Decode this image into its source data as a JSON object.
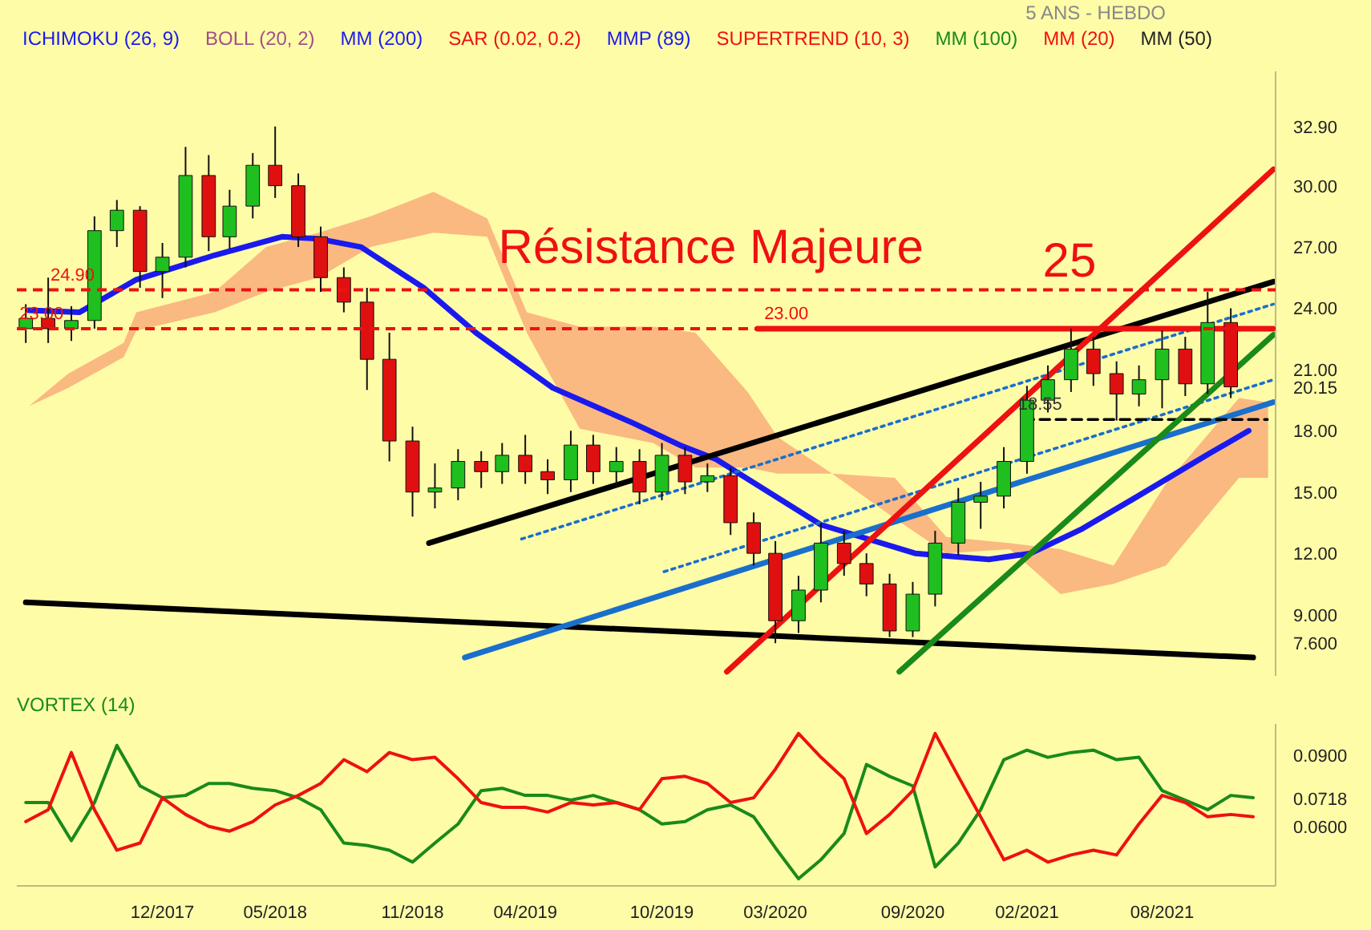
{
  "chart_data": [
    {
      "type": "candlestick",
      "x": [
        "2017-06",
        "2017-07",
        "2017-08",
        "2017-09",
        "2017-10",
        "2017-11",
        "2017-12",
        "2018-01",
        "2018-02",
        "2018-03",
        "2018-04",
        "2018-05",
        "2018-06",
        "2018-07",
        "2018-08",
        "2018-09",
        "2018-10",
        "2018-11",
        "2018-12",
        "2019-01",
        "2019-02",
        "2019-03",
        "2019-04",
        "2019-05",
        "2019-06",
        "2019-07",
        "2019-08",
        "2019-09",
        "2019-10",
        "2019-11",
        "2019-12",
        "2020-01",
        "2020-02",
        "2020-03",
        "2020-04",
        "2020-05",
        "2020-06",
        "2020-07",
        "2020-08",
        "2020-09",
        "2020-10",
        "2020-11",
        "2020-12",
        "2021-01",
        "2021-02",
        "2021-03",
        "2021-04",
        "2021-05",
        "2021-06",
        "2021-07",
        "2021-08",
        "2021-09",
        "2021-10",
        "2021-11"
      ],
      "ohlc": [
        [
          23.0,
          24.2,
          22.3,
          23.5
        ],
        [
          23.5,
          25.5,
          22.3,
          23.0
        ],
        [
          23.0,
          24.1,
          22.4,
          23.4
        ],
        [
          23.4,
          28.5,
          23.0,
          27.8
        ],
        [
          27.8,
          29.3,
          27.0,
          28.8
        ],
        [
          28.8,
          29.0,
          25.0,
          25.8
        ],
        [
          25.8,
          27.2,
          24.5,
          26.5
        ],
        [
          26.5,
          31.9,
          26.0,
          30.5
        ],
        [
          30.5,
          31.5,
          26.8,
          27.5
        ],
        [
          27.5,
          29.8,
          26.9,
          29.0
        ],
        [
          29.0,
          31.6,
          28.4,
          31.0
        ],
        [
          31.0,
          32.9,
          29.4,
          30.0
        ],
        [
          30.0,
          30.6,
          27.0,
          27.5
        ],
        [
          27.5,
          28.0,
          24.8,
          25.5
        ],
        [
          25.5,
          26.0,
          23.8,
          24.3
        ],
        [
          24.3,
          25.0,
          20.0,
          21.5
        ],
        [
          21.5,
          22.8,
          16.5,
          17.5
        ],
        [
          17.5,
          18.2,
          13.8,
          15.0
        ],
        [
          15.0,
          16.4,
          14.2,
          15.2
        ],
        [
          15.2,
          17.1,
          14.6,
          16.5
        ],
        [
          16.5,
          17.0,
          15.2,
          16.0
        ],
        [
          16.0,
          17.4,
          15.4,
          16.8
        ],
        [
          16.8,
          17.8,
          15.4,
          16.0
        ],
        [
          16.0,
          16.6,
          14.9,
          15.6
        ],
        [
          15.6,
          18.0,
          15.0,
          17.3
        ],
        [
          17.3,
          17.8,
          15.4,
          16.0
        ],
        [
          16.0,
          17.2,
          15.3,
          16.5
        ],
        [
          16.5,
          17.1,
          14.4,
          15.0
        ],
        [
          15.0,
          17.4,
          14.6,
          16.8
        ],
        [
          16.8,
          17.2,
          14.9,
          15.5
        ],
        [
          15.5,
          16.4,
          15.0,
          15.8
        ],
        [
          15.8,
          16.2,
          12.9,
          13.5
        ],
        [
          13.5,
          14.0,
          11.4,
          12.0
        ],
        [
          12.0,
          12.6,
          7.6,
          8.7
        ],
        [
          8.7,
          10.9,
          8.1,
          10.2
        ],
        [
          10.2,
          13.5,
          9.6,
          12.5
        ],
        [
          12.5,
          13.1,
          10.9,
          11.5
        ],
        [
          11.5,
          12.0,
          9.9,
          10.5
        ],
        [
          10.5,
          11.0,
          7.9,
          8.2
        ],
        [
          8.2,
          10.6,
          7.9,
          10.0
        ],
        [
          10.0,
          13.1,
          9.4,
          12.5
        ],
        [
          12.5,
          15.2,
          11.9,
          14.5
        ],
        [
          14.5,
          15.5,
          13.2,
          14.8
        ],
        [
          14.8,
          17.2,
          14.2,
          16.5
        ],
        [
          16.5,
          20.2,
          15.9,
          19.5
        ],
        [
          19.5,
          21.2,
          18.9,
          20.5
        ],
        [
          20.5,
          23.0,
          19.9,
          22.0
        ],
        [
          22.0,
          22.6,
          20.2,
          20.8
        ],
        [
          20.8,
          21.4,
          18.5,
          19.8
        ],
        [
          19.8,
          21.2,
          19.2,
          20.5
        ],
        [
          20.5,
          23.0,
          19.1,
          22.0
        ],
        [
          22.0,
          22.6,
          19.7,
          20.3
        ],
        [
          20.3,
          24.8,
          19.8,
          23.3
        ],
        [
          23.3,
          24.0,
          19.6,
          20.15
        ]
      ],
      "colors": [
        "#1fbf1f",
        "#e01010",
        "#1fbf1f",
        "#1fbf1f",
        "#1fbf1f",
        "#e01010",
        "#1fbf1f",
        "#1fbf1f",
        "#e01010",
        "#1fbf1f",
        "#1fbf1f",
        "#e01010",
        "#e01010",
        "#e01010",
        "#e01010",
        "#e01010",
        "#e01010",
        "#e01010",
        "#1fbf1f",
        "#1fbf1f",
        "#e01010",
        "#1fbf1f",
        "#e01010",
        "#e01010",
        "#1fbf1f",
        "#e01010",
        "#1fbf1f",
        "#e01010",
        "#1fbf1f",
        "#e01010",
        "#1fbf1f",
        "#e01010",
        "#e01010",
        "#e01010",
        "#1fbf1f",
        "#1fbf1f",
        "#e01010",
        "#e01010",
        "#e01010",
        "#1fbf1f",
        "#1fbf1f",
        "#1fbf1f",
        "#1fbf1f",
        "#1fbf1f",
        "#1fbf1f",
        "#1fbf1f",
        "#1fbf1f",
        "#e01010",
        "#e01010",
        "#1fbf1f",
        "#1fbf1f",
        "#e01010",
        "#1fbf1f",
        "#e01010"
      ],
      "series": [
        {
          "type": "line",
          "color": "#f9ad7a",
          "values": [
            null,
            null,
            null,
            null,
            null,
            null,
            null,
            null,
            null,
            null,
            null,
            null,
            null,
            null,
            null,
            null,
            null,
            null,
            null,
            null,
            null,
            null,
            null,
            null,
            null
          ],
          "x": [
            "2017-06-05",
            "2017-07-28",
            "2017-10-10",
            "2017-10-27",
            "2018-02-09",
            "2018-04-19",
            "2018-06-28",
            "2018-09-06",
            "2018-11-29",
            "2019-02-09",
            "2019-04-03",
            "2019-06-13",
            "2019-09-19",
            "2019-11-15",
            "2020-01-24",
            "2020-03-04",
            "2020-05-16",
            "2020-08-08",
            "2020-10-16",
            "2021-01-09",
            "2021-03-18",
            "2021-05-28",
            "2021-08-06",
            "2021-11-12",
            "2021-12-21"
          ],
          "upper": [
            19.2,
            20.8,
            22.3,
            23.8,
            24.8,
            27.0,
            27.7,
            28.5,
            29.7,
            28.4,
            23.8,
            23.1,
            23.1,
            22.8,
            19.9,
            17.7,
            15.9,
            15.7,
            12.8,
            12.5,
            12.2,
            11.4,
            15.4,
            19.6,
            19.4
          ],
          "lower": [
            19.2,
            20.1,
            21.6,
            22.9,
            23.8,
            24.8,
            25.5,
            27.0,
            27.7,
            27.5,
            22.8,
            18.1,
            17.4,
            16.2,
            16.2,
            15.9,
            15.9,
            13.7,
            12.0,
            12.2,
            10.0,
            10.5,
            11.4,
            15.7,
            15.7
          ]
        },
        {
          "type": "line",
          "color": "#1a1aee",
          "x": [
            "2017-06-05",
            "2017-08-12",
            "2017-10-27",
            "2018-02-09",
            "2018-05-10",
            "2018-06-28",
            "2018-08-24",
            "2018-11-16",
            "2019-01-25",
            "2019-05-08",
            "2019-08-22",
            "2019-10-25",
            "2019-12-13",
            "2020-05-01",
            "2020-09-04",
            "2020-12-12",
            "2021-02-06",
            "2021-04-16",
            "2021-06-25",
            "2021-10-04",
            "2021-11-25"
          ],
          "values": [
            23.9,
            23.8,
            25.4,
            26.6,
            27.5,
            27.4,
            27.0,
            25.0,
            22.8,
            20.1,
            18.4,
            17.3,
            16.6,
            13.4,
            12.0,
            11.7,
            12.0,
            13.2,
            14.7,
            16.9,
            18.0
          ]
        },
        {
          "type": "line",
          "color": "#000000",
          "x": [
            "2018-11-23",
            "2021-12-28"
          ],
          "values": [
            12.5,
            25.3
          ]
        },
        {
          "type": "line",
          "color": "#000000",
          "x": [
            "2017-06-01",
            "2021-12-01"
          ],
          "values": [
            9.6,
            6.9
          ]
        },
        {
          "type": "line",
          "color": "#1a6fcc",
          "x": [
            "2019-01-10",
            "2021-12-28"
          ],
          "values": [
            6.9,
            19.4
          ]
        },
        {
          "type": "line",
          "color": "#1a6fcc",
          "line_style": "dotted",
          "x": [
            "2019-03-27",
            "2021-12-28"
          ],
          "values": [
            12.7,
            24.2
          ]
        },
        {
          "type": "line",
          "color": "#1a6fcc",
          "line_style": "dotted",
          "x": [
            "2019-10-04",
            "2021-12-28"
          ],
          "values": [
            11.1,
            20.5
          ]
        },
        {
          "type": "line",
          "color": "#000000",
          "line_style": "dashed",
          "x": [
            "2021-01-28",
            "2021-12-20"
          ],
          "values": [
            18.55,
            18.55
          ]
        },
        {
          "type": "line",
          "color": "#ee1111",
          "x": [
            "2020-02-06",
            "2021-12-28"
          ],
          "values": [
            23.0,
            23.0
          ]
        },
        {
          "type": "line",
          "color": "#ee1111",
          "x": [
            "2019-12-27",
            "2021-12-28"
          ],
          "values": [
            6.2,
            30.8
          ]
        },
        {
          "type": "line",
          "color": "#1a8a1a",
          "x": [
            "2020-08-14",
            "2021-12-28"
          ],
          "values": [
            6.2,
            22.7
          ]
        }
      ],
      "ref_lines": [
        {
          "axis": "y",
          "value": 24.9,
          "label": "24.90",
          "color": "#ee1111",
          "line_style": "dashed"
        },
        {
          "axis": "y",
          "value": 23.0,
          "label": "23.00",
          "color": "#ee1111",
          "line_style": "dashed"
        }
      ],
      "annotations": [
        "5 ANS - HEBDO",
        "ICHIMOKU (26, 9)",
        "BOLL (20, 2)",
        "MM (200)",
        "SAR (0.02, 0.2)",
        "MMP (89)",
        "SUPERTREND (10, 3)",
        "MM (100)",
        "MM (20)",
        "MM (50)",
        "25",
        {
          "text": "Résistance Majeure",
          "x": "2019-02-24",
          "y": 25.6
        },
        {
          "text": "23.00",
          "x": "2020-02-15",
          "y": 23.0
        },
        {
          "text": "18.55",
          "x": "2021-01-20",
          "y": 18.55
        }
      ],
      "xlim": [
        "2017-05-20",
        "2021-12-31"
      ],
      "ylim": [
        6.0,
        35.6
      ],
      "yticks": [
        {
          "value": 7.6,
          "label": "7.600"
        },
        {
          "value": 9,
          "label": "9.000"
        },
        {
          "value": 12,
          "label": "12.00"
        },
        {
          "value": 15,
          "label": "15.00"
        },
        {
          "value": 18,
          "label": "18.00"
        },
        {
          "value": 20.15,
          "label": "20.15"
        },
        {
          "value": 21,
          "label": "21.00"
        },
        {
          "value": 24,
          "label": "24.00"
        },
        {
          "value": 27,
          "label": "27.00"
        },
        {
          "value": 30,
          "label": "30.00"
        },
        {
          "value": 32.9,
          "label": "32.90"
        }
      ],
      "tick_labels": "y"
    },
    {
      "type": "line",
      "title": "VORTEX (14)",
      "x": [
        "2017-06",
        "2017-07",
        "2017-08",
        "2017-09",
        "2017-10",
        "2017-11",
        "2017-12",
        "2018-01",
        "2018-02",
        "2018-03",
        "2018-04",
        "2018-05",
        "2018-06",
        "2018-07",
        "2018-08",
        "2018-09",
        "2018-10",
        "2018-11",
        "2018-12",
        "2019-01",
        "2019-02",
        "2019-03",
        "2019-04",
        "2019-05",
        "2019-06",
        "2019-07",
        "2019-08",
        "2019-09",
        "2019-10",
        "2019-11",
        "2019-12",
        "2020-01",
        "2020-02",
        "2020-03",
        "2020-04",
        "2020-05",
        "2020-06",
        "2020-07",
        "2020-08",
        "2020-09",
        "2020-10",
        "2020-11",
        "2020-12",
        "2021-01",
        "2021-02",
        "2021-03",
        "2021-04",
        "2021-05",
        "2021-06",
        "2021-07",
        "2021-08",
        "2021-09",
        "2021-10",
        "2021-11",
        "2021-12"
      ],
      "series": [
        {
          "color": "#1a8a1a",
          "values": [
            0.07,
            0.07,
            0.054,
            0.07,
            0.094,
            0.077,
            0.072,
            0.073,
            0.078,
            0.078,
            0.076,
            0.075,
            0.072,
            0.067,
            0.053,
            0.052,
            0.05,
            0.045,
            0.053,
            0.061,
            0.075,
            0.076,
            0.073,
            0.073,
            0.071,
            0.073,
            0.07,
            0.067,
            0.061,
            0.062,
            0.067,
            0.069,
            0.064,
            0.051,
            0.038,
            0.046,
            0.057,
            0.086,
            0.081,
            0.077,
            0.043,
            0.053,
            0.067,
            0.088,
            0.092,
            0.089,
            0.091,
            0.092,
            0.088,
            0.089,
            0.075,
            0.071,
            0.067,
            0.073,
            0.072
          ]
        },
        {
          "color": "#ee1111",
          "values": [
            0.062,
            0.067,
            0.091,
            0.067,
            0.05,
            0.053,
            0.072,
            0.065,
            0.06,
            0.058,
            0.062,
            0.069,
            0.073,
            0.078,
            0.088,
            0.083,
            0.091,
            0.088,
            0.089,
            0.08,
            0.07,
            0.068,
            0.068,
            0.066,
            0.07,
            0.069,
            0.07,
            0.067,
            0.08,
            0.081,
            0.078,
            0.07,
            0.072,
            0.084,
            0.099,
            0.089,
            0.08,
            0.057,
            0.065,
            0.075,
            0.099,
            0.081,
            0.064,
            0.046,
            0.05,
            0.045,
            0.048,
            0.05,
            0.048,
            0.061,
            0.073,
            0.07,
            0.064,
            0.065,
            0.064
          ]
        }
      ],
      "xlim": [
        "2017-05-20",
        "2021-12-31"
      ],
      "ylim": [
        0.035,
        0.103
      ],
      "xticks": [
        {
          "value": "2017-12",
          "label": "12/2017"
        },
        {
          "value": "2018-05",
          "label": "05/2018"
        },
        {
          "value": "2018-11",
          "label": "11/2018"
        },
        {
          "value": "2019-04",
          "label": "04/2019"
        },
        {
          "value": "2019-10",
          "label": "10/2019"
        },
        {
          "value": "2020-03",
          "label": "03/2020"
        },
        {
          "value": "2020-09",
          "label": "09/2020"
        },
        {
          "value": "2021-02",
          "label": "02/2021"
        },
        {
          "value": "2021-08",
          "label": "08/2021"
        }
      ],
      "yticks": [
        {
          "value": 0.06,
          "label": "0.0600"
        },
        {
          "value": 0.0718,
          "label": "0.0718"
        },
        {
          "value": 0.09,
          "label": "0.0900"
        }
      ]
    }
  ]
}
